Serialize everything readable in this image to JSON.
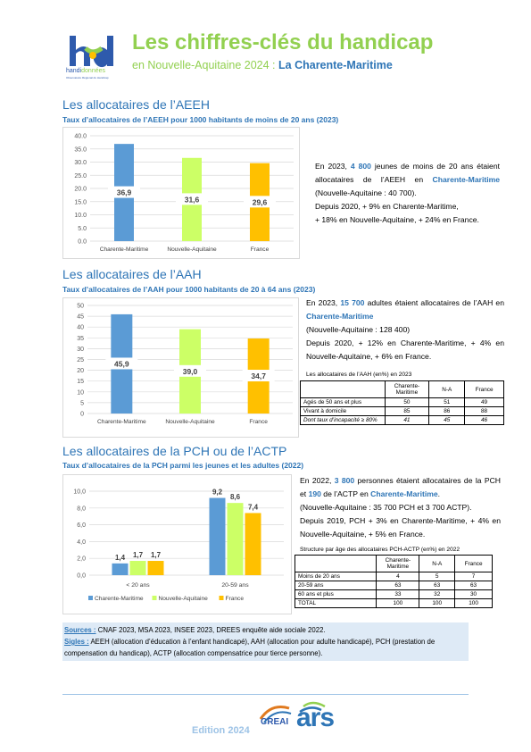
{
  "logo": {
    "brand_left": "handi",
    "brand_right": "données",
    "tagline": "Observatoire Régional du Handicap"
  },
  "header": {
    "title": "Les chiffres-clés du handicap",
    "subtitle_prefix": "en Nouvelle-Aquitaine 2024 : ",
    "subtitle_dept": "La Charente-Maritime"
  },
  "colors": {
    "blue": "#5B9BD5",
    "green": "#CCFF66",
    "orange": "#FFC000",
    "title_green": "#92D050",
    "heading_blue": "#2E75B6"
  },
  "aeeh": {
    "heading": "Les allocataires de l’AEEH",
    "subheading": "Taux d’allocataires de l’AEEH pour 1000 habitants de moins de 20 ans (2023)",
    "para": {
      "p1": "En 2023, ",
      "n1": "4 800",
      "p2": " jeunes de moins de 20 ans étaient allocataires de l’AEEH en ",
      "dep": "Charente-Maritime",
      "p3": " (Nouvelle-Aquitaine : 40 700).",
      "l2": "Depuis 2020, + 9% en Charente-Maritime,",
      "l3": "+ 18% en Nouvelle-Aquitaine, + 24% en France."
    }
  },
  "aah": {
    "heading": "Les allocataires de l’AAH",
    "subheading": "Taux d’allocataires de l’AAH pour 1000 habitants de 20 à 64 ans (2023)",
    "para": {
      "p1": "En 2023, ",
      "n1": "15 700",
      "p2": " adultes étaient allocataires de l’AAH en ",
      "dep": "Charente-Maritime",
      "l2": "(Nouvelle-Aquitaine : 128 400)",
      "l3": "Depuis 2020, + 12% en Charente-Maritime, + 4% en Nouvelle-Aquitaine, + 6% en France."
    },
    "table": {
      "caption": "Les allocataires de l’AAH (en%) en 2023",
      "headers": [
        "",
        "Charente-Maritime",
        "N-A",
        "France"
      ],
      "rows": [
        [
          "Agés de 50 ans et plus",
          "50",
          "51",
          "49"
        ],
        [
          "Vivant à domicile",
          "85",
          "86",
          "88"
        ],
        [
          "Dont taux d’incapacité ≥ 80%",
          "41",
          "45",
          "46"
        ]
      ]
    }
  },
  "pch": {
    "heading": "Les allocataires de la PCH ou de l’ACTP",
    "subheading": "Taux d’allocataires de la PCH parmi les jeunes et les adultes (2022)",
    "para": {
      "p1": "En 2022, ",
      "n1": "3 800",
      "p2": " personnes étaient allocataires de la PCH et ",
      "n2": "190",
      "p3": " de l’ACTP en ",
      "dep": "Charente-Maritime",
      "p4": ".",
      "l2": "(Nouvelle-Aquitaine : 35 700 PCH et 3 700 ACTP).",
      "l3": "Depuis 2019, PCH + 3% en Charente-Maritime, + 4% en Nouvelle-Aquitaine, + 5% en France."
    },
    "table": {
      "caption": "Structure par âge des allocataires PCH-ACTP (en%) en 2022",
      "headers": [
        "",
        "Charente-Maritime",
        "N-A",
        "France"
      ],
      "rows": [
        [
          "Moins de 20 ans",
          "4",
          "5",
          "7"
        ],
        [
          "20-59 ans",
          "63",
          "63",
          "63"
        ],
        [
          "60 ans et plus",
          "33",
          "32",
          "30"
        ],
        [
          "TOTAL",
          "100",
          "100",
          "100"
        ]
      ]
    }
  },
  "chart_data": [
    {
      "type": "bar",
      "categories": [
        "Charente-Maritime",
        "Nouvelle-Aquitaine",
        "France"
      ],
      "values": [
        36.9,
        31.6,
        29.6
      ],
      "labels": [
        "36,9",
        "31,6",
        "29,6"
      ],
      "colors": [
        "#5B9BD5",
        "#CCFF66",
        "#FFC000"
      ],
      "ylim": [
        0,
        40
      ],
      "yticks": [
        "0.0",
        "5.0",
        "10.0",
        "15.0",
        "20.0",
        "25.0",
        "30.0",
        "35.0",
        "40.0"
      ],
      "grid": true
    },
    {
      "type": "bar",
      "categories": [
        "Charente-Maritime",
        "Nouvelle-Aquitaine",
        "France"
      ],
      "values": [
        45.9,
        39.0,
        34.7
      ],
      "labels": [
        "45,9",
        "39,0",
        "34,7"
      ],
      "colors": [
        "#5B9BD5",
        "#CCFF66",
        "#FFC000"
      ],
      "ylim": [
        0,
        50
      ],
      "yticks": [
        "0",
        "5",
        "10",
        "15",
        "20",
        "25",
        "30",
        "35",
        "40",
        "45",
        "50"
      ],
      "grid": true
    },
    {
      "type": "bar",
      "categories": [
        "< 20 ans",
        "20-59 ans"
      ],
      "series": [
        {
          "name": "Charente-Maritime",
          "values": [
            1.4,
            9.2
          ],
          "labels": [
            "1,4",
            "9,2"
          ],
          "color": "#5B9BD5"
        },
        {
          "name": "Nouvelle-Aquitaine",
          "values": [
            1.7,
            8.6
          ],
          "labels": [
            "1,7",
            "8,6"
          ],
          "color": "#CCFF66"
        },
        {
          "name": "France",
          "values": [
            1.7,
            7.4
          ],
          "labels": [
            "1,7",
            "7,4"
          ],
          "color": "#FFC000"
        }
      ],
      "ylim": [
        0,
        10
      ],
      "yticks": [
        "0,0",
        "2,0",
        "4,0",
        "6,0",
        "8,0",
        "10,0"
      ],
      "grid": true,
      "legend": "bottom"
    }
  ],
  "sources": {
    "label": "Sources :",
    "text": " CNAF 2023, MSA 2023, INSEE 2023, DREES enquête aide sociale 2022.",
    "sigles_label": "Sigles :",
    "sigles_text": " AEEH (allocation d’éducation à l’enfant handicapé), AAH (allocation pour adulte handicapé), PCH (prestation de compensation du handicap), ACTP (allocation compensatrice pour tierce personne)."
  },
  "footer": {
    "edition": "Edition 2024",
    "creai": "CREAI",
    "ars": "ars"
  }
}
